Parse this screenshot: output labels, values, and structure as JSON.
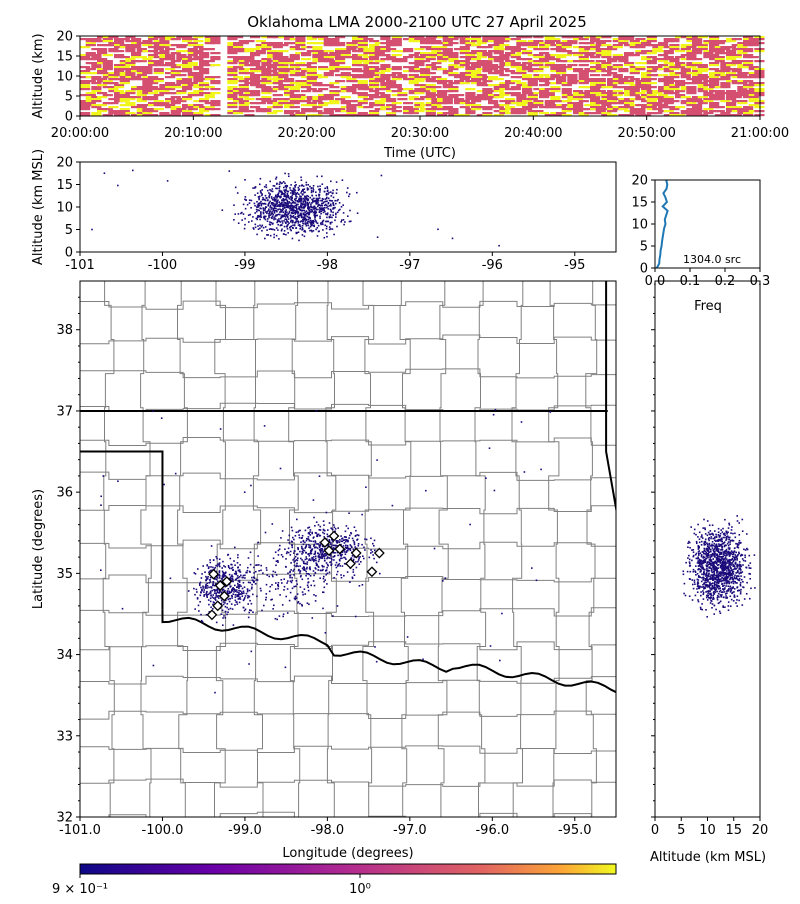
{
  "title": "Oklahoma LMA 2000-2100 UTC 27 April 2025",
  "colors": {
    "background": "#ffffff",
    "source_low": "#1a0a7a",
    "source_mid": "#d44f70",
    "source_high": "#f2f51c",
    "county_lines": "#808080",
    "state_lines": "#000000",
    "histogram_line": "#1f77b4"
  },
  "chart_data": [
    {
      "id": "time_height",
      "type": "heatmap",
      "xlabel": "Time (UTC)",
      "ylabel": "Altitude (km)",
      "xticks": [
        "20:00:00",
        "20:10:00",
        "20:20:00",
        "20:30:00",
        "20:40:00",
        "20:50:00",
        "21:00:00"
      ],
      "yticks": [
        "0",
        "5",
        "10",
        "15",
        "20"
      ],
      "xlim": [
        "20:00:00",
        "21:00:00"
      ],
      "ylim": [
        0,
        20
      ]
    },
    {
      "id": "lon_alt",
      "type": "scatter",
      "ylabel": "Altitude (km MSL)",
      "xticks": [
        "-101",
        "-100",
        "-99",
        "-98",
        "-97",
        "-96",
        "-95"
      ],
      "yticks": [
        "0",
        "5",
        "10",
        "15",
        "20"
      ],
      "xlim": [
        -101,
        -94.5
      ],
      "ylim": [
        0,
        20
      ]
    },
    {
      "id": "alt_histogram",
      "type": "line",
      "xlabel": "Freq",
      "annotation": "1304.0 src",
      "xticks": [
        "0.0",
        "0.1",
        "0.2",
        "0.3"
      ],
      "yticks": [
        "0",
        "5",
        "10",
        "15",
        "20"
      ],
      "xlim": [
        0,
        0.3
      ],
      "ylim": [
        0,
        20
      ],
      "freq": [
        0.005,
        0.012,
        0.013,
        0.015,
        0.016,
        0.019,
        0.02,
        0.022,
        0.024,
        0.026,
        0.03,
        0.028,
        0.032,
        0.036,
        0.022,
        0.034,
        0.03,
        0.024,
        0.033,
        0.035,
        0.032
      ],
      "altitude": [
        0,
        1,
        2,
        3,
        4,
        5,
        6,
        7,
        8,
        9,
        10,
        11,
        12,
        13,
        14,
        15,
        16,
        17,
        18,
        19,
        20
      ]
    },
    {
      "id": "plan_view",
      "type": "scatter",
      "xlabel": "Longitude (degrees)",
      "ylabel": "Latitude (degrees)",
      "xticks": [
        "-101.0",
        "-100.0",
        "-99.0",
        "-98.0",
        "-97.0",
        "-96.0",
        "-95.0"
      ],
      "yticks": [
        "32",
        "33",
        "34",
        "35",
        "36",
        "37",
        "38"
      ],
      "xlim": [
        -101,
        -94.5
      ],
      "ylim": [
        32,
        38.6
      ],
      "stations": [
        {
          "lon": -99.38,
          "lat": 34.99
        },
        {
          "lon": -99.3,
          "lat": 34.85
        },
        {
          "lon": -99.25,
          "lat": 34.72
        },
        {
          "lon": -99.33,
          "lat": 34.6
        },
        {
          "lon": -99.4,
          "lat": 34.49
        },
        {
          "lon": -99.22,
          "lat": 34.9
        },
        {
          "lon": -97.98,
          "lat": 35.28
        },
        {
          "lon": -97.92,
          "lat": 35.46
        },
        {
          "lon": -97.85,
          "lat": 35.3
        },
        {
          "lon": -98.03,
          "lat": 35.38
        },
        {
          "lon": -97.65,
          "lat": 35.25
        },
        {
          "lon": -97.72,
          "lat": 35.12
        },
        {
          "lon": -97.37,
          "lat": 35.25
        },
        {
          "lon": -97.46,
          "lat": 35.02
        }
      ]
    },
    {
      "id": "alt_lat",
      "type": "scatter",
      "xlabel": "Altitude (km MSL)",
      "xticks": [
        "0",
        "5",
        "10",
        "15",
        "20"
      ],
      "xlim": [
        0,
        20
      ],
      "ylim": [
        32,
        38.6
      ]
    },
    {
      "id": "colorbar",
      "type": "colorbar",
      "tick_low": "9 × 10⁻¹",
      "tick_mid": "10⁰"
    }
  ]
}
